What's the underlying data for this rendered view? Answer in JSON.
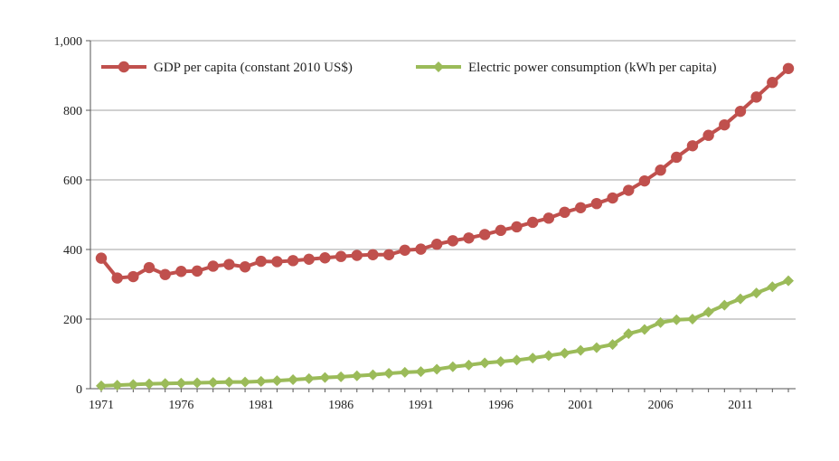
{
  "chart_data": {
    "type": "line",
    "title": "",
    "xlabel": "",
    "ylabel": "",
    "ylim": [
      0,
      1000
    ],
    "yticks": [
      0,
      200,
      400,
      600,
      800,
      1000
    ],
    "ytick_labels": [
      "0",
      "200",
      "400",
      "600",
      "800",
      "1,000"
    ],
    "xlim": [
      1971,
      2014
    ],
    "xticks": [
      1971,
      1976,
      1981,
      1986,
      1991,
      1996,
      2001,
      2006,
      2011
    ],
    "xtick_labels": [
      "1971",
      "1976",
      "1981",
      "1986",
      "1991",
      "1996",
      "2001",
      "2006",
      "2011"
    ],
    "grid": "horizontal",
    "legend_position": "top",
    "x": [
      1971,
      1972,
      1973,
      1974,
      1975,
      1976,
      1977,
      1978,
      1979,
      1980,
      1981,
      1982,
      1983,
      1984,
      1985,
      1986,
      1987,
      1988,
      1989,
      1990,
      1991,
      1992,
      1993,
      1994,
      1995,
      1996,
      1997,
      1998,
      1999,
      2000,
      2001,
      2002,
      2003,
      2004,
      2005,
      2006,
      2007,
      2008,
      2009,
      2010,
      2011,
      2012,
      2013,
      2014
    ],
    "series": [
      {
        "name": "GDP per capita (constant 2010 US$)",
        "color": "#c0504d",
        "marker": "circle",
        "values": [
          375,
          318,
          322,
          348,
          328,
          337,
          338,
          352,
          357,
          350,
          366,
          365,
          368,
          372,
          376,
          380,
          383,
          385,
          385,
          398,
          401,
          415,
          425,
          433,
          443,
          455,
          465,
          478,
          490,
          507,
          520,
          532,
          548,
          570,
          597,
          628,
          665,
          698,
          728,
          758,
          797,
          838,
          880,
          920
        ]
      },
      {
        "name": "Electric power consumption (kWh per capita)",
        "color": "#9bbb59",
        "marker": "diamond",
        "values": [
          8,
          10,
          12,
          14,
          15,
          16,
          17,
          18,
          19,
          19,
          21,
          23,
          26,
          29,
          32,
          34,
          37,
          40,
          44,
          47,
          49,
          56,
          63,
          68,
          74,
          78,
          82,
          88,
          95,
          102,
          110,
          118,
          127,
          158,
          170,
          190,
          198,
          200,
          220,
          240,
          258,
          275,
          293,
          310
        ]
      }
    ]
  }
}
